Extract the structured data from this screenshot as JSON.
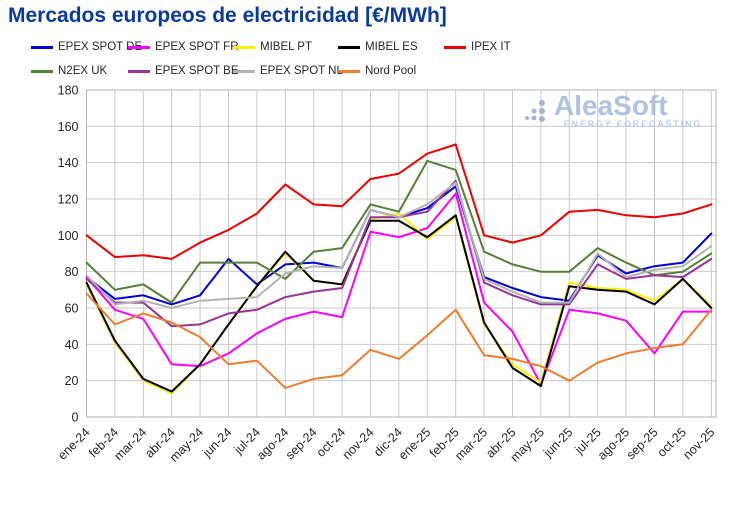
{
  "title": "Mercados europeos de electricidad [€/MWh]",
  "watermark": {
    "name": "AleaSoft",
    "tagline": "ENERGY FORECASTING"
  },
  "chart_data": {
    "type": "line",
    "title": "Mercados europeos de electricidad [€/MWh]",
    "xlabel": "",
    "ylabel": "€/MWh",
    "ylim": [
      0,
      180
    ],
    "y_tick_step": 20,
    "grid": true,
    "legend_position": "top",
    "x_labels": [
      "ene-24",
      "feb-24",
      "mar-24",
      "abr-24",
      "may-24",
      "jun-24",
      "jul-24",
      "ago-24",
      "sep-24",
      "oct-24",
      "nov-24",
      "dic-24",
      "ene-25",
      "feb-25",
      "mar-25",
      "abr-25",
      "may-25",
      "jun-25",
      "jul-25",
      "ago-25",
      "sep-25",
      "oct-25",
      "nov-25"
    ],
    "series": [
      {
        "name": "EPEX SPOT DE",
        "color": "#0000dd",
        "values": [
          77,
          65,
          67,
          62,
          67,
          87,
          73,
          84,
          85,
          82,
          114,
          110,
          115,
          127,
          77,
          71,
          66,
          64,
          89,
          79,
          83,
          85,
          101
        ]
      },
      {
        "name": "EPEX SPOT FR",
        "color": "#ff00ff",
        "values": [
          77,
          59,
          54,
          29,
          28,
          35,
          46,
          54,
          58,
          55,
          102,
          99,
          104,
          123,
          63,
          47,
          18,
          59,
          57,
          53,
          35,
          58,
          58
        ]
      },
      {
        "name": "MIBEL PT",
        "color": "#ffee00",
        "values": [
          73,
          41,
          20,
          13,
          29,
          51,
          72,
          90,
          75,
          73,
          109,
          112,
          98,
          110,
          51,
          29,
          19,
          74,
          71,
          70,
          64,
          76,
          61
        ]
      },
      {
        "name": "MIBEL ES",
        "color": "#000000",
        "values": [
          74,
          42,
          21,
          14,
          29,
          51,
          72,
          91,
          75,
          73,
          108,
          108,
          99,
          111,
          52,
          27,
          17,
          72,
          70,
          69,
          62,
          76,
          60
        ]
      },
      {
        "name": "IPEX IT",
        "color": "#ee0000",
        "values": [
          100,
          88,
          89,
          87,
          96,
          103,
          112,
          128,
          117,
          116,
          131,
          134,
          145,
          150,
          100,
          96,
          100,
          113,
          114,
          111,
          110,
          112,
          117
        ]
      },
      {
        "name": "N2EX UK",
        "color": "#538135",
        "values": [
          85,
          70,
          73,
          63,
          85,
          85,
          85,
          76,
          91,
          93,
          117,
          113,
          141,
          136,
          91,
          84,
          80,
          80,
          93,
          85,
          78,
          80,
          90
        ]
      },
      {
        "name": "EPEX SPOT BE",
        "color": "#993399",
        "values": [
          76,
          63,
          63,
          50,
          51,
          57,
          59,
          66,
          69,
          71,
          110,
          110,
          113,
          130,
          74,
          67,
          62,
          62,
          84,
          76,
          78,
          77,
          87
        ]
      },
      {
        "name": "EPEX SPOT NL",
        "color": "#b3b3b3",
        "values": [
          78,
          62,
          64,
          60,
          64,
          65,
          66,
          79,
          83,
          82,
          114,
          110,
          117,
          129,
          76,
          69,
          63,
          63,
          90,
          77,
          81,
          83,
          94
        ]
      },
      {
        "name": "Nord Pool",
        "color": "#ed7d31",
        "values": [
          68,
          51,
          57,
          52,
          44,
          29,
          31,
          16,
          21,
          23,
          37,
          32,
          45,
          59,
          34,
          32,
          28,
          20,
          30,
          35,
          38,
          40,
          59
        ]
      }
    ]
  }
}
